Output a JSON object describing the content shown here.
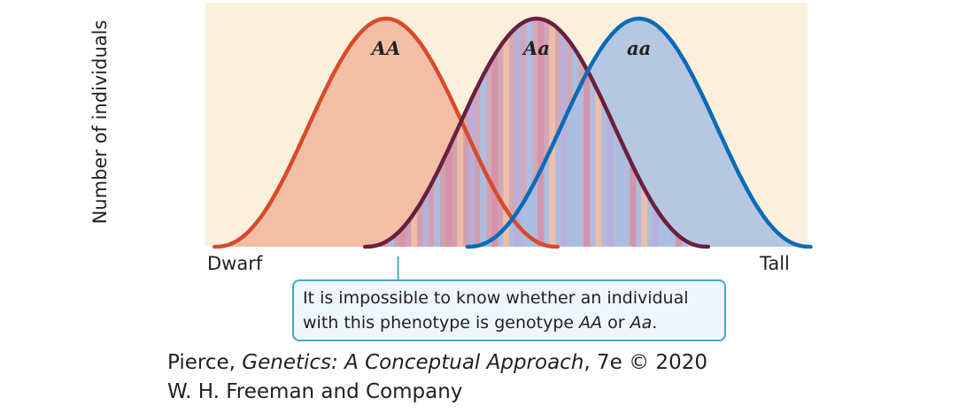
{
  "chart_data": {
    "type": "area",
    "title": "",
    "xlabel": "",
    "ylabel": "Number of individuals",
    "x_ticks": [
      "Dwarf",
      "Tall"
    ],
    "grid": false,
    "overlap_pattern": "alternating vertical stripes",
    "series": [
      {
        "name": "AA",
        "peak_x": 0.3,
        "relative_height": 1.0,
        "line_color": "#d94a2b",
        "fill_color": "#f2bfa6"
      },
      {
        "name": "Aa",
        "peak_x": 0.55,
        "relative_height": 1.0,
        "line_color": "#6a1f3f",
        "fill_color": "#c99bb0"
      },
      {
        "name": "aa",
        "peak_x": 0.72,
        "relative_height": 1.0,
        "line_color": "#0a6bb7",
        "fill_color": "#a9bfe3"
      }
    ]
  },
  "plot_background": "#faf0dc",
  "callout": {
    "line1": "It is impossible to know whether an individual",
    "line2_prefix": "with this phenotype is genotype ",
    "g1": "AA",
    "or": " or ",
    "g2": "Aa",
    "end": ".",
    "pointer_x": 0.32
  },
  "credit": {
    "author": "Pierce, ",
    "book": "Genetics: A Conceptual Approach",
    "edition": ", 7e © 2020",
    "publisher": "W. H. Freeman and Company"
  }
}
